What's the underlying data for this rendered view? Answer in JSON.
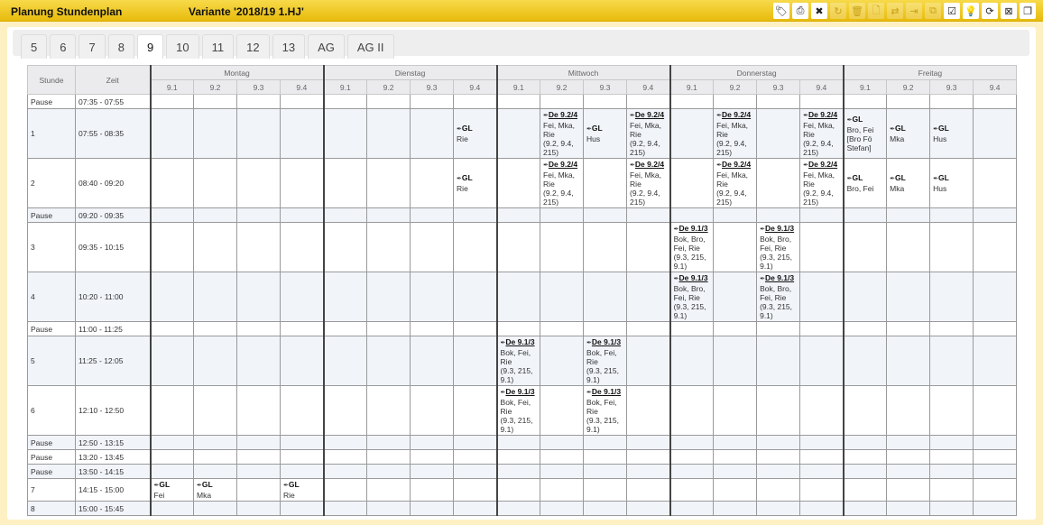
{
  "header": {
    "title": "Planung Stundenplan",
    "variant": "Variante '2018/19 1.HJ'",
    "toolbar": [
      {
        "icon": "tags-icon",
        "glyph": "🏷",
        "enabled": true
      },
      {
        "icon": "print-icon",
        "glyph": "⎙",
        "enabled": true
      },
      {
        "icon": "clear-screen-icon",
        "glyph": "✖",
        "enabled": true
      },
      {
        "icon": "refresh-icon",
        "glyph": "↻",
        "enabled": false
      },
      {
        "icon": "trash-icon",
        "glyph": "🗑",
        "enabled": false
      },
      {
        "icon": "file-icon",
        "glyph": "🗋",
        "enabled": false
      },
      {
        "icon": "transfer-icon",
        "glyph": "⇄",
        "enabled": false
      },
      {
        "icon": "export-icon",
        "glyph": "⇥",
        "enabled": false
      },
      {
        "icon": "copy-icon",
        "glyph": "⧉",
        "enabled": false
      },
      {
        "icon": "calendar-check-icon",
        "glyph": "☑",
        "enabled": true
      },
      {
        "icon": "lightbulb-icon",
        "glyph": "💡",
        "enabled": true
      },
      {
        "icon": "sync-icon",
        "glyph": "⟳",
        "enabled": true
      },
      {
        "icon": "screen-delete-icon",
        "glyph": "⊠",
        "enabled": true
      },
      {
        "icon": "windows-icon",
        "glyph": "❐",
        "enabled": true
      }
    ]
  },
  "tabs": [
    {
      "label": "5"
    },
    {
      "label": "6"
    },
    {
      "label": "7"
    },
    {
      "label": "8"
    },
    {
      "label": "9",
      "active": true
    },
    {
      "label": "10"
    },
    {
      "label": "11"
    },
    {
      "label": "12"
    },
    {
      "label": "13"
    },
    {
      "label": "AG"
    },
    {
      "label": "AG II"
    }
  ],
  "table": {
    "col_stunde": "Stunde",
    "col_zeit": "Zeit",
    "days": [
      "Montag",
      "Dienstag",
      "Mittwoch",
      "Donnerstag",
      "Freitag"
    ],
    "classes": [
      "9.1",
      "9.2",
      "9.3",
      "9.4"
    ],
    "rows": [
      {
        "label": "Pause",
        "time": "07:35 - 07:55",
        "cells": []
      },
      {
        "label": "1",
        "time": "07:55 - 08:35",
        "cells": [
          null,
          null,
          null,
          null,
          null,
          null,
          null,
          {
            "subject": "GL",
            "lines": [
              "Rie"
            ]
          },
          null,
          {
            "subject": "De 9.2/4",
            "link": true,
            "lines": [
              "Fei, Mka,",
              "Rie",
              "(9.2, 9.4,",
              "215)"
            ]
          },
          {
            "subject": "GL",
            "lines": [
              "Hus"
            ]
          },
          {
            "subject": "De 9.2/4",
            "link": true,
            "lines": [
              "Fei, Mka,",
              "Rie",
              "(9.2, 9.4,",
              "215)"
            ]
          },
          null,
          {
            "subject": "De 9.2/4",
            "link": true,
            "lines": [
              "Fei, Mka,",
              "Rie",
              "(9.2, 9.4,",
              "215)"
            ]
          },
          null,
          {
            "subject": "De 9.2/4",
            "link": true,
            "lines": [
              "Fei, Mka,",
              "Rie",
              "(9.2, 9.4,",
              "215)"
            ]
          },
          {
            "subject": "GL",
            "lines": [
              "Bro, Fei",
              "[Bro Fö",
              "Stefan]"
            ]
          },
          {
            "subject": "GL",
            "lines": [
              "Mka"
            ]
          },
          {
            "subject": "GL",
            "lines": [
              "Hus"
            ]
          },
          null
        ]
      },
      {
        "label": "2",
        "time": "08:40 - 09:20",
        "cells": [
          null,
          null,
          null,
          null,
          null,
          null,
          null,
          {
            "subject": "GL",
            "lines": [
              "Rie"
            ]
          },
          null,
          {
            "subject": "De 9.2/4",
            "link": true,
            "lines": [
              "Fei, Mka,",
              "Rie",
              "(9.2, 9.4,",
              "215)"
            ]
          },
          null,
          {
            "subject": "De 9.2/4",
            "link": true,
            "lines": [
              "Fei, Mka,",
              "Rie",
              "(9.2, 9.4,",
              "215)"
            ]
          },
          null,
          {
            "subject": "De 9.2/4",
            "link": true,
            "lines": [
              "Fei, Mka,",
              "Rie",
              "(9.2, 9.4,",
              "215)"
            ]
          },
          null,
          {
            "subject": "De 9.2/4",
            "link": true,
            "lines": [
              "Fei, Mka,",
              "Rie",
              "(9.2, 9.4,",
              "215)"
            ]
          },
          {
            "subject": "GL",
            "lines": [
              "Bro, Fei"
            ]
          },
          {
            "subject": "GL",
            "lines": [
              "Mka"
            ]
          },
          {
            "subject": "GL",
            "lines": [
              "Hus"
            ]
          },
          null
        ]
      },
      {
        "label": "Pause",
        "time": "09:20 - 09:35",
        "cells": []
      },
      {
        "label": "3",
        "time": "09:35 - 10:15",
        "cells": [
          null,
          null,
          null,
          null,
          null,
          null,
          null,
          null,
          null,
          null,
          null,
          null,
          {
            "subject": "De 9.1/3",
            "link": true,
            "lines": [
              "Bok, Bro,",
              "Fei, Rie",
              "(9.3, 215,",
              "9.1)"
            ]
          },
          null,
          {
            "subject": "De 9.1/3",
            "link": true,
            "lines": [
              "Bok, Bro,",
              "Fei, Rie",
              "(9.3, 215,",
              "9.1)"
            ]
          },
          null,
          null,
          null,
          null,
          null
        ]
      },
      {
        "label": "4",
        "time": "10:20 - 11:00",
        "cells": [
          null,
          null,
          null,
          null,
          null,
          null,
          null,
          null,
          null,
          null,
          null,
          null,
          {
            "subject": "De 9.1/3",
            "link": true,
            "lines": [
              "Bok, Bro,",
              "Fei, Rie",
              "(9.3, 215,",
              "9.1)"
            ]
          },
          null,
          {
            "subject": "De 9.1/3",
            "link": true,
            "lines": [
              "Bok, Bro,",
              "Fei, Rie",
              "(9.3, 215,",
              "9.1)"
            ]
          },
          null,
          null,
          null,
          null,
          null
        ]
      },
      {
        "label": "Pause",
        "time": "11:00 - 11:25",
        "cells": []
      },
      {
        "label": "5",
        "time": "11:25 - 12:05",
        "cells": [
          null,
          null,
          null,
          null,
          null,
          null,
          null,
          null,
          {
            "subject": "De 9.1/3",
            "link": true,
            "lines": [
              "Bok, Fei,",
              "Rie",
              "(9.3, 215,",
              "9.1)"
            ]
          },
          null,
          {
            "subject": "De 9.1/3",
            "link": true,
            "lines": [
              "Bok, Fei,",
              "Rie",
              "(9.3, 215,",
              "9.1)"
            ]
          },
          null
        ]
      },
      {
        "label": "6",
        "time": "12:10 - 12:50",
        "cells": [
          null,
          null,
          null,
          null,
          null,
          null,
          null,
          null,
          {
            "subject": "De 9.1/3",
            "link": true,
            "lines": [
              "Bok, Fei,",
              "Rie",
              "(9.3, 215,",
              "9.1)"
            ]
          },
          null,
          {
            "subject": "De 9.1/3",
            "link": true,
            "lines": [
              "Bok, Fei,",
              "Rie",
              "(9.3, 215,",
              "9.1)"
            ]
          },
          null
        ]
      },
      {
        "label": "Pause",
        "time": "12:50 - 13:15",
        "cells": []
      },
      {
        "label": "Pause",
        "time": "13:20 - 13:45",
        "cells": []
      },
      {
        "label": "Pause",
        "time": "13:50 - 14:15",
        "cells": []
      },
      {
        "label": "7",
        "time": "14:15 - 15:00",
        "cells": [
          {
            "subject": "GL",
            "lines": [
              "Fei"
            ]
          },
          {
            "subject": "GL",
            "lines": [
              "Mka"
            ]
          },
          null,
          {
            "subject": "GL",
            "lines": [
              "Rie"
            ]
          }
        ]
      },
      {
        "label": "8",
        "time": "15:00 - 15:45",
        "cells": []
      }
    ]
  }
}
